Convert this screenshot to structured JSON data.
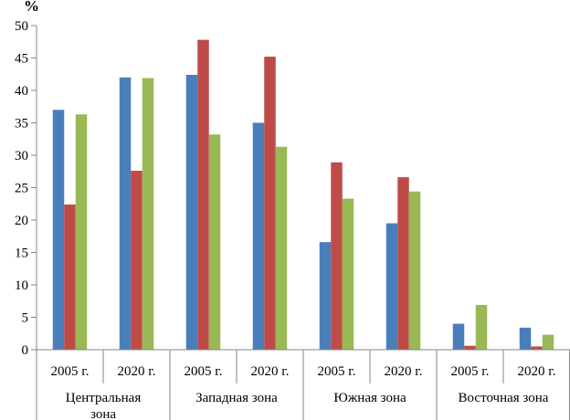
{
  "chart_data": {
    "type": "bar",
    "ylabel": "%",
    "ylim": [
      0,
      50
    ],
    "yticks": [
      0,
      5,
      10,
      15,
      20,
      25,
      30,
      35,
      40,
      45,
      50
    ],
    "categories": [
      "2005 г.",
      "2020 г.",
      "2005 г.",
      "2020 г.",
      "2005 г.",
      "2020 г.",
      "2005 г.",
      "2020 г."
    ],
    "groups": [
      {
        "label_lines": [
          "Центральная",
          "зона"
        ],
        "size": 2
      },
      {
        "label_lines": [
          "Западная зона"
        ],
        "size": 2
      },
      {
        "label_lines": [
          "Южная зона"
        ],
        "size": 2
      },
      {
        "label_lines": [
          "Восточная зона"
        ],
        "size": 2
      }
    ],
    "series": [
      {
        "color": "#4a7ebb",
        "values": [
          37.0,
          42.0,
          42.4,
          35.0,
          16.6,
          19.5,
          4.0,
          3.4
        ]
      },
      {
        "color": "#be4b48",
        "values": [
          22.4,
          27.6,
          47.8,
          45.2,
          28.9,
          26.6,
          0.6,
          0.5
        ]
      },
      {
        "color": "#98b954",
        "values": [
          36.3,
          41.9,
          33.2,
          31.3,
          23.3,
          24.4,
          6.9,
          2.3
        ]
      }
    ],
    "grid": false,
    "legend": "none"
  }
}
